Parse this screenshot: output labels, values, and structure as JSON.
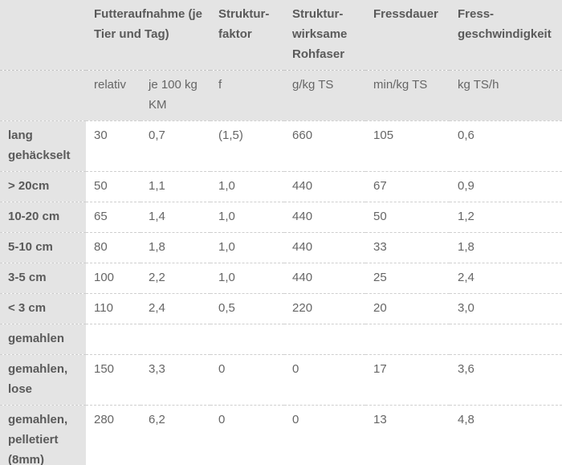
{
  "table": {
    "header": [
      [
        "Futteraufnahme (je Tier und Tag)",
        "Struktur-faktor",
        "Struktur-wirksame Rohfaser",
        "Fressdauer",
        "Fress-geschwindigkeit"
      ],
      [
        "relativ",
        "je 100 kg KM",
        "f",
        "g/kg TS",
        "min/kg TS",
        "kg TS/h"
      ]
    ],
    "rows": [
      {
        "label": "lang gehäckselt",
        "cells": [
          "30",
          "0,7",
          "(1,5)",
          "660",
          "105",
          "0,6"
        ]
      },
      {
        "label": "> 20cm",
        "cells": [
          "50",
          "1,1",
          "1,0",
          "440",
          "67",
          "0,9"
        ]
      },
      {
        "label": "10-20 cm",
        "cells": [
          "65",
          "1,4",
          "1,0",
          "440",
          "50",
          "1,2"
        ]
      },
      {
        "label": "5-10 cm",
        "cells": [
          "80",
          "1,8",
          "1,0",
          "440",
          "33",
          "1,8"
        ]
      },
      {
        "label": "3-5 cm",
        "cells": [
          "100",
          "2,2",
          "1,0",
          "440",
          "25",
          "2,4"
        ]
      },
      {
        "label": "< 3 cm",
        "cells": [
          "110",
          "2,4",
          "0,5",
          "220",
          "20",
          "3,0"
        ]
      },
      {
        "label": "gemahlen",
        "cells": []
      },
      {
        "label": "gemahlen, lose",
        "cells": [
          "150",
          "3,3",
          "0",
          "0",
          "17",
          "3,6"
        ]
      },
      {
        "label": "gemahlen, pelletiert (8mm)",
        "cells": [
          "280",
          "6,2",
          "0",
          "0",
          "13",
          "4,8"
        ]
      }
    ]
  }
}
